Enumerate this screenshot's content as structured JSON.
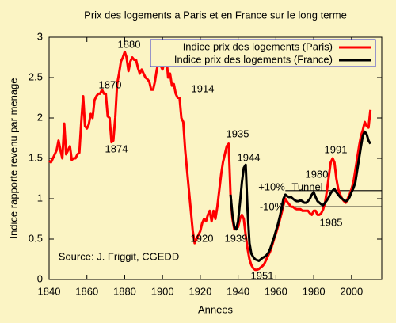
{
  "chart_data": {
    "type": "line",
    "title": "Prix des logements a Paris et en France sur le long terme",
    "xlabel": "Annees",
    "ylabel": "Indice rapporte revenu par menage",
    "xlim": [
      1840,
      2016
    ],
    "ylim": [
      0,
      3
    ],
    "xticks": [
      1840,
      1860,
      1880,
      1900,
      1920,
      1940,
      1960,
      1980,
      2000
    ],
    "yticks": [
      0,
      0.5,
      1,
      1.5,
      2,
      2.5,
      3
    ],
    "legend": "upper right",
    "series": [
      {
        "name": "Indice prix des logements (Paris)",
        "color": "#ff0000",
        "x": [
          1840,
          1841,
          1842,
          1843,
          1844,
          1845,
          1846,
          1847,
          1848,
          1849,
          1850,
          1851,
          1852,
          1853,
          1854,
          1855,
          1856,
          1857,
          1858,
          1859,
          1860,
          1861,
          1862,
          1863,
          1864,
          1865,
          1866,
          1867,
          1868,
          1869,
          1870,
          1871,
          1872,
          1873,
          1874,
          1875,
          1876,
          1877,
          1878,
          1879,
          1880,
          1881,
          1882,
          1883,
          1884,
          1885,
          1886,
          1887,
          1888,
          1889,
          1890,
          1891,
          1892,
          1893,
          1894,
          1895,
          1896,
          1897,
          1898,
          1899,
          1900,
          1901,
          1902,
          1903,
          1904,
          1905,
          1906,
          1907,
          1908,
          1909,
          1910,
          1911,
          1912,
          1913,
          1914,
          1915,
          1916,
          1917,
          1918,
          1919,
          1920,
          1921,
          1922,
          1923,
          1924,
          1925,
          1926,
          1927,
          1928,
          1929,
          1930,
          1931,
          1932,
          1933,
          1934,
          1935,
          1936,
          1937,
          1938,
          1939,
          1940,
          1941,
          1942,
          1943,
          1944,
          1945,
          1946,
          1947,
          1948,
          1949,
          1950,
          1951,
          1952,
          1953,
          1954,
          1955,
          1956,
          1957,
          1958,
          1959,
          1960,
          1961,
          1962,
          1963,
          1964,
          1965,
          1966,
          1967,
          1968,
          1969,
          1970,
          1971,
          1972,
          1973,
          1974,
          1975,
          1976,
          1977,
          1978,
          1979,
          1980,
          1981,
          1982,
          1983,
          1984,
          1985,
          1986,
          1987,
          1988,
          1989,
          1990,
          1991,
          1992,
          1993,
          1994,
          1995,
          1996,
          1997,
          1998,
          1999,
          2000,
          2001,
          2002,
          2003,
          2004,
          2005,
          2006,
          2007,
          2008,
          2009,
          2010
        ],
        "values": [
          1.47,
          1.45,
          1.5,
          1.55,
          1.6,
          1.72,
          1.6,
          1.5,
          1.93,
          1.55,
          1.6,
          1.65,
          1.48,
          1.5,
          1.5,
          1.55,
          1.57,
          1.95,
          2.27,
          1.9,
          1.87,
          1.92,
          2.05,
          2.0,
          2.22,
          2.27,
          2.3,
          2.3,
          2.35,
          2.3,
          2.3,
          2.02,
          2.0,
          1.7,
          1.72,
          2.0,
          2.42,
          2.55,
          2.7,
          2.75,
          2.82,
          2.75,
          2.58,
          2.7,
          2.75,
          2.72,
          2.72,
          2.62,
          2.55,
          2.6,
          2.55,
          2.5,
          2.48,
          2.45,
          2.35,
          2.35,
          2.45,
          2.6,
          2.7,
          2.65,
          2.6,
          2.7,
          2.76,
          2.5,
          2.55,
          2.4,
          2.42,
          2.3,
          2.25,
          2.25,
          2.0,
          1.95,
          1.6,
          1.35,
          1.1,
          0.85,
          0.6,
          0.45,
          0.5,
          0.55,
          0.6,
          0.7,
          0.75,
          0.72,
          0.8,
          0.85,
          0.72,
          0.85,
          0.75,
          0.9,
          1.1,
          1.3,
          1.45,
          1.55,
          1.65,
          1.68,
          1.05,
          0.75,
          0.62,
          0.63,
          0.65,
          0.75,
          0.8,
          0.75,
          0.55,
          0.38,
          0.25,
          0.18,
          0.14,
          0.12,
          0.12,
          0.13,
          0.15,
          0.17,
          0.2,
          0.25,
          0.3,
          0.35,
          0.42,
          0.5,
          0.57,
          0.65,
          0.73,
          0.82,
          0.92,
          1.0,
          0.96,
          0.93,
          0.9,
          0.9,
          0.88,
          0.87,
          0.87,
          0.87,
          0.85,
          0.85,
          0.85,
          0.85,
          0.82,
          0.8,
          0.85,
          0.85,
          0.8,
          0.8,
          0.82,
          0.87,
          0.95,
          1.1,
          1.28,
          1.45,
          1.5,
          1.45,
          1.25,
          1.12,
          1.05,
          1.0,
          0.97,
          0.95,
          1.0,
          1.05,
          1.12,
          1.2,
          1.35,
          1.5,
          1.65,
          1.78,
          1.85,
          1.95,
          1.9,
          1.88,
          2.1
        ]
      },
      {
        "name": "Indice prix des logements (France)",
        "color": "#000000",
        "x": [
          1936,
          1937,
          1938,
          1939,
          1940,
          1941,
          1942,
          1943,
          1944,
          1945,
          1946,
          1947,
          1948,
          1949,
          1950,
          1951,
          1952,
          1953,
          1954,
          1955,
          1956,
          1957,
          1958,
          1959,
          1960,
          1961,
          1962,
          1963,
          1964,
          1965,
          1966,
          1967,
          1968,
          1969,
          1970,
          1971,
          1972,
          1973,
          1974,
          1975,
          1976,
          1977,
          1978,
          1979,
          1980,
          1981,
          1982,
          1983,
          1984,
          1985,
          1986,
          1987,
          1988,
          1989,
          1990,
          1991,
          1992,
          1993,
          1994,
          1995,
          1996,
          1997,
          1998,
          1999,
          2000,
          2001,
          2002,
          2003,
          2004,
          2005,
          2006,
          2007,
          2008,
          2009,
          2010
        ],
        "values": [
          1.05,
          0.8,
          0.65,
          0.62,
          0.72,
          0.95,
          1.2,
          1.38,
          1.42,
          0.85,
          0.45,
          0.32,
          0.28,
          0.25,
          0.24,
          0.23,
          0.25,
          0.27,
          0.28,
          0.3,
          0.33,
          0.38,
          0.45,
          0.52,
          0.6,
          0.68,
          0.77,
          0.88,
          1.0,
          1.05,
          1.03,
          1.02,
          1.02,
          1.0,
          0.98,
          0.97,
          0.97,
          0.98,
          0.97,
          0.95,
          0.95,
          0.97,
          1.0,
          1.05,
          1.08,
          1.02,
          0.97,
          0.95,
          0.93,
          0.92,
          0.95,
          0.98,
          1.02,
          1.07,
          1.1,
          1.12,
          1.08,
          1.05,
          1.02,
          1.0,
          0.98,
          0.97,
          0.98,
          1.02,
          1.08,
          1.13,
          1.2,
          1.35,
          1.5,
          1.65,
          1.78,
          1.83,
          1.8,
          1.72,
          1.68
        ]
      }
    ],
    "reference_lines": [
      1.1,
      0.9
    ],
    "reference_start": 1965,
    "annotations": [
      "1880",
      "1870",
      "1874",
      "1914",
      "1935",
      "1944",
      "1939",
      "1920",
      "1951",
      "1991",
      "1980",
      "+10%",
      "Tunnel",
      "-10%",
      "1985",
      "Source: J. Friggit, CGEDD"
    ]
  }
}
